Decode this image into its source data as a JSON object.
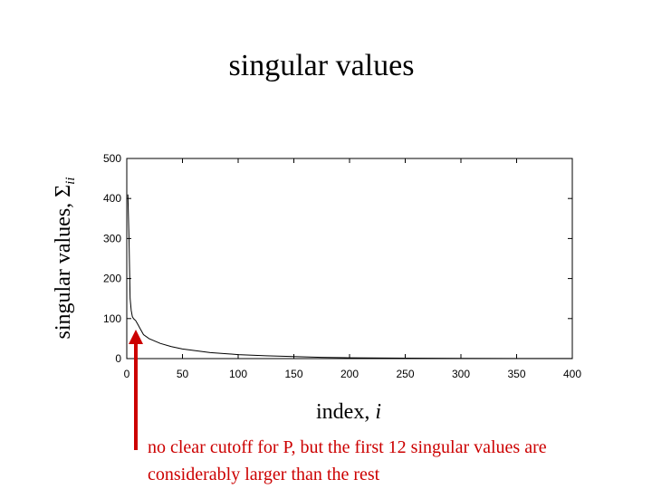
{
  "chart_data": {
    "type": "line",
    "title": "singular values",
    "ylabel": "singular values, Σ",
    "ylabel_subscript": "ii",
    "xlabel": "index, ",
    "xlabel_var": "i",
    "annotation": [
      "no clear cutoff for P, but the first 12 singular values are",
      "considerably larger than the rest"
    ],
    "annotation_color": "#cc0000",
    "x": [
      1,
      2,
      3,
      4,
      5,
      6,
      8,
      10,
      12,
      15,
      20,
      30,
      40,
      50,
      75,
      100,
      125,
      150,
      175,
      200,
      250,
      300,
      350,
      400
    ],
    "series": [
      {
        "color": "#000000",
        "values": [
          410,
          300,
          150,
          120,
          105,
          100,
          95,
          85,
          75,
          60,
          50,
          38,
          30,
          24,
          15,
          10,
          7,
          5,
          3,
          2,
          1,
          0.5,
          0.3,
          0.2
        ]
      }
    ],
    "xlim": [
      0,
      400
    ],
    "xticks": [
      0,
      50,
      100,
      150,
      200,
      250,
      300,
      350,
      400
    ],
    "ylim": [
      0,
      500
    ],
    "yticks": [
      0,
      100,
      200,
      300,
      400,
      500
    ]
  }
}
